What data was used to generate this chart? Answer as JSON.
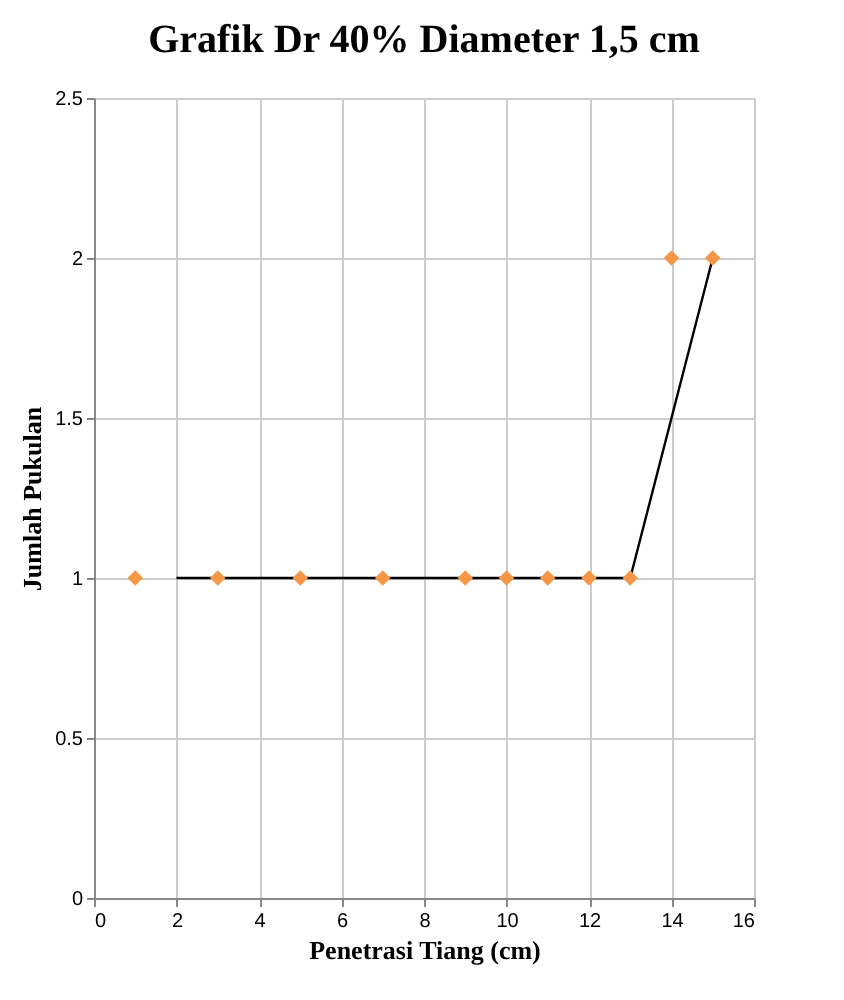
{
  "chart_data": {
    "type": "scatter",
    "title": "Grafik Dr 40% Diameter 1,5 cm",
    "xlabel": "Penetrasi Tiang (cm)",
    "ylabel": "Jumlah Pukulan",
    "xlim": [
      0,
      16
    ],
    "ylim": [
      0,
      2.5
    ],
    "xticks": [
      0,
      2,
      4,
      6,
      8,
      10,
      12,
      14,
      16
    ],
    "yticks": [
      0,
      0.5,
      1,
      1.5,
      2,
      2.5
    ],
    "grid": true,
    "series": [
      {
        "type": "line",
        "color": "#000000",
        "x": [
          2,
          13,
          15
        ],
        "values": [
          1,
          1,
          2
        ],
        "marker": "none"
      },
      {
        "color": "#f79646",
        "x": [
          1,
          3,
          5,
          7,
          9,
          10,
          11,
          12,
          13,
          14,
          15
        ],
        "values": [
          1,
          1,
          1,
          1,
          1,
          1,
          1,
          1,
          1,
          2,
          2
        ],
        "marker": "diamond"
      }
    ]
  }
}
